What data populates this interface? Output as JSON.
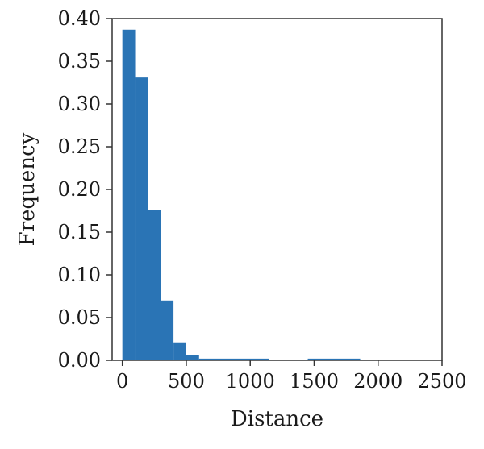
{
  "chart_data": {
    "type": "bar",
    "xlabel": "Distance",
    "ylabel": "Frequency",
    "xlim": [
      -80,
      2500
    ],
    "ylim": [
      0,
      0.4
    ],
    "grid": false,
    "bar_color": "#2a74b5",
    "bins": [
      {
        "x0": 0,
        "x1": 100,
        "value": 0.387
      },
      {
        "x0": 100,
        "x1": 200,
        "value": 0.331
      },
      {
        "x0": 200,
        "x1": 300,
        "value": 0.176
      },
      {
        "x0": 300,
        "x1": 400,
        "value": 0.07
      },
      {
        "x0": 400,
        "x1": 500,
        "value": 0.021
      },
      {
        "x0": 500,
        "x1": 600,
        "value": 0.006
      },
      {
        "x0": 600,
        "x1": 1150,
        "value": 0.002
      },
      {
        "x0": 1450,
        "x1": 1860,
        "value": 0.002
      }
    ],
    "x_ticks": [
      {
        "value": 0,
        "label": "0"
      },
      {
        "value": 500,
        "label": "500"
      },
      {
        "value": 1000,
        "label": "1000"
      },
      {
        "value": 1500,
        "label": "1500"
      },
      {
        "value": 2000,
        "label": "2000"
      },
      {
        "value": 2500,
        "label": "2500"
      }
    ],
    "y_ticks": [
      {
        "value": 0.0,
        "label": "0.00"
      },
      {
        "value": 0.05,
        "label": "0.05"
      },
      {
        "value": 0.1,
        "label": "0.10"
      },
      {
        "value": 0.15,
        "label": "0.15"
      },
      {
        "value": 0.2,
        "label": "0.20"
      },
      {
        "value": 0.25,
        "label": "0.25"
      },
      {
        "value": 0.3,
        "label": "0.30"
      },
      {
        "value": 0.35,
        "label": "0.35"
      },
      {
        "value": 0.4,
        "label": "0.40"
      }
    ]
  }
}
